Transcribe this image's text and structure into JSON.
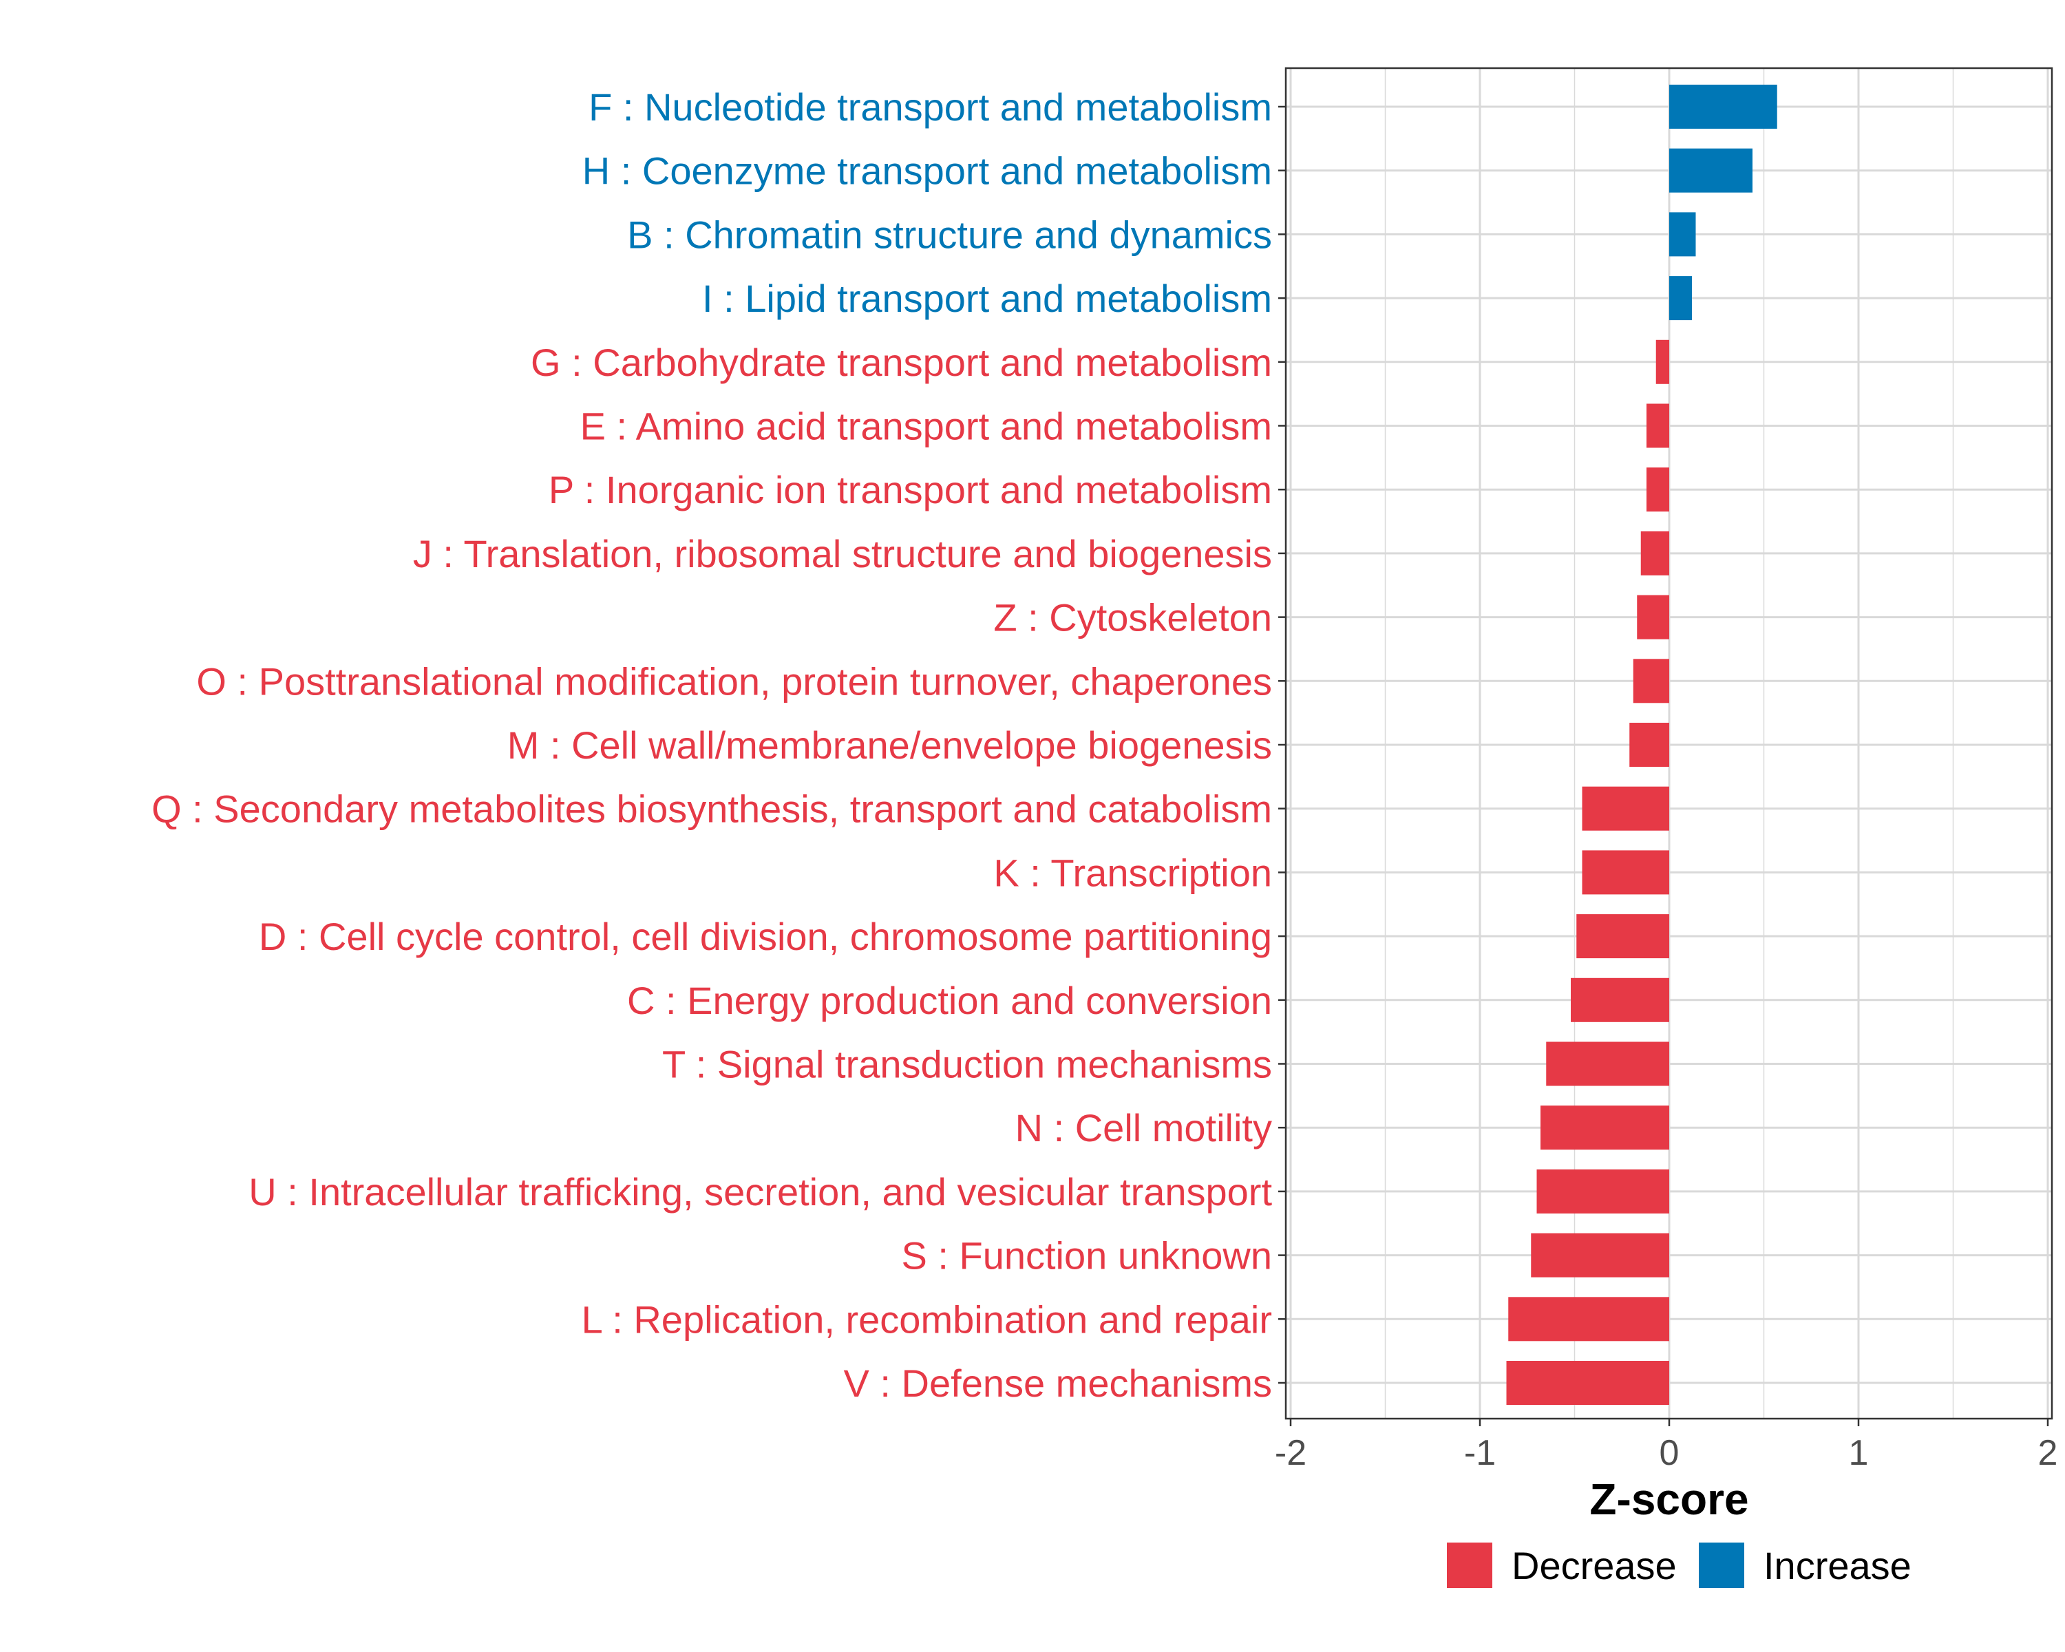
{
  "colors": {
    "decrease": "#e63946",
    "increase": "#0077b6",
    "grid": "#d9d9d9",
    "axis_text": "#4d4d4d",
    "panel_border": "#333333"
  },
  "chart_data": {
    "type": "bar",
    "orientation": "horizontal",
    "xlabel": "Z-score",
    "xlim": [
      -2,
      2
    ],
    "xticks": [
      -2,
      -1,
      0,
      1,
      2
    ],
    "xtick_labels": [
      "-2",
      "-1",
      "0",
      "1",
      "2"
    ],
    "grid": true,
    "legend": {
      "placement": "bottom",
      "items": [
        {
          "label": "Decrease",
          "color_key": "decrease"
        },
        {
          "label": "Increase",
          "color_key": "increase"
        }
      ]
    },
    "categories": [
      {
        "label": "F : Nucleotide transport and metabolism",
        "value": 0.57,
        "direction": "increase"
      },
      {
        "label": "H : Coenzyme transport and metabolism",
        "value": 0.44,
        "direction": "increase"
      },
      {
        "label": "B : Chromatin structure and dynamics",
        "value": 0.14,
        "direction": "increase"
      },
      {
        "label": "I : Lipid transport and metabolism",
        "value": 0.12,
        "direction": "increase"
      },
      {
        "label": "G : Carbohydrate transport and metabolism",
        "value": -0.07,
        "direction": "decrease"
      },
      {
        "label": "E : Amino acid transport and metabolism",
        "value": -0.12,
        "direction": "decrease"
      },
      {
        "label": "P : Inorganic ion transport and metabolism",
        "value": -0.12,
        "direction": "decrease"
      },
      {
        "label": "J : Translation, ribosomal structure and biogenesis",
        "value": -0.15,
        "direction": "decrease"
      },
      {
        "label": "Z : Cytoskeleton",
        "value": -0.17,
        "direction": "decrease"
      },
      {
        "label": "O : Posttranslational modification, protein turnover, chaperones",
        "value": -0.19,
        "direction": "decrease"
      },
      {
        "label": "M : Cell wall/membrane/envelope biogenesis",
        "value": -0.21,
        "direction": "decrease"
      },
      {
        "label": "Q : Secondary metabolites biosynthesis, transport and catabolism",
        "value": -0.46,
        "direction": "decrease"
      },
      {
        "label": "K : Transcription",
        "value": -0.46,
        "direction": "decrease"
      },
      {
        "label": "D : Cell cycle control, cell division, chromosome partitioning",
        "value": -0.49,
        "direction": "decrease"
      },
      {
        "label": "C : Energy production and conversion",
        "value": -0.52,
        "direction": "decrease"
      },
      {
        "label": "T : Signal transduction mechanisms",
        "value": -0.65,
        "direction": "decrease"
      },
      {
        "label": "N : Cell motility",
        "value": -0.68,
        "direction": "decrease"
      },
      {
        "label": "U : Intracellular trafficking, secretion, and vesicular transport",
        "value": -0.7,
        "direction": "decrease"
      },
      {
        "label": "S : Function unknown",
        "value": -0.73,
        "direction": "decrease"
      },
      {
        "label": "L : Replication, recombination and repair",
        "value": -0.85,
        "direction": "decrease"
      },
      {
        "label": "V : Defense mechanisms",
        "value": -0.86,
        "direction": "decrease"
      }
    ]
  }
}
